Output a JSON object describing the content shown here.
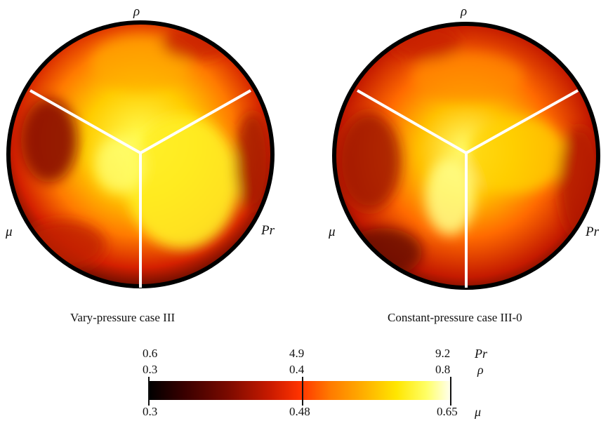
{
  "panels": [
    {
      "caption": "Vary-pressure case III",
      "labels": {
        "top": "ρ",
        "left": "μ",
        "right": "Pr"
      }
    },
    {
      "caption": "Constant-pressure case III-0",
      "labels": {
        "top": "ρ",
        "left": "μ",
        "right": "Pr"
      }
    }
  ],
  "colorbar": {
    "rows": [
      {
        "variable": "Pr",
        "ticks": [
          "0.6",
          "4.9",
          "9.2"
        ]
      },
      {
        "variable": "ρ",
        "ticks": [
          "0.3",
          "0.4",
          "0.8"
        ]
      },
      {
        "variable": "μ",
        "ticks": [
          "0.3",
          "0.48",
          "0.65"
        ]
      }
    ],
    "colormap": [
      "#000000",
      "#7a0a00",
      "#ff3300",
      "#ffb300",
      "#ffff66",
      "#fffff0"
    ]
  }
}
